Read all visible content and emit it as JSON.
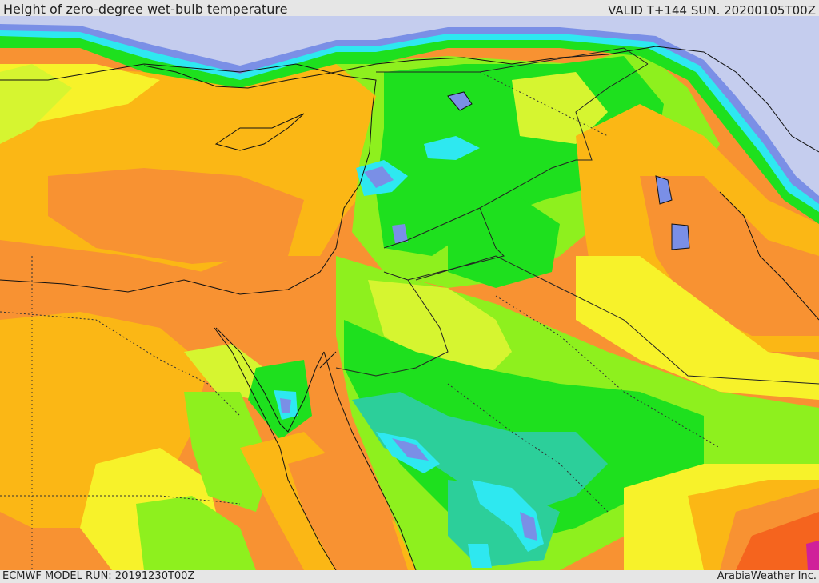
{
  "header": {
    "title": "Height of zero-degree wet-bulb temperature",
    "valid": "VALID T+144 SUN. 20200105T00Z"
  },
  "footer": {
    "model_run": "ECMWF MODEL RUN: 20191230T00Z",
    "credit": "ArabiaWeather Inc."
  },
  "map": {
    "colors": {
      "sea_low": "#c5cdee",
      "blue": "#7a8fe6",
      "cyan": "#2ee8f0",
      "teal": "#2ccf9a",
      "green": "#1ee01e",
      "light_green": "#8ef01e",
      "yellow_green": "#d6f530",
      "yellow": "#f7f22a",
      "gold": "#fbb715",
      "orange": "#f89232",
      "red_orange": "#f5641e",
      "magenta": "#d0209a"
    }
  }
}
